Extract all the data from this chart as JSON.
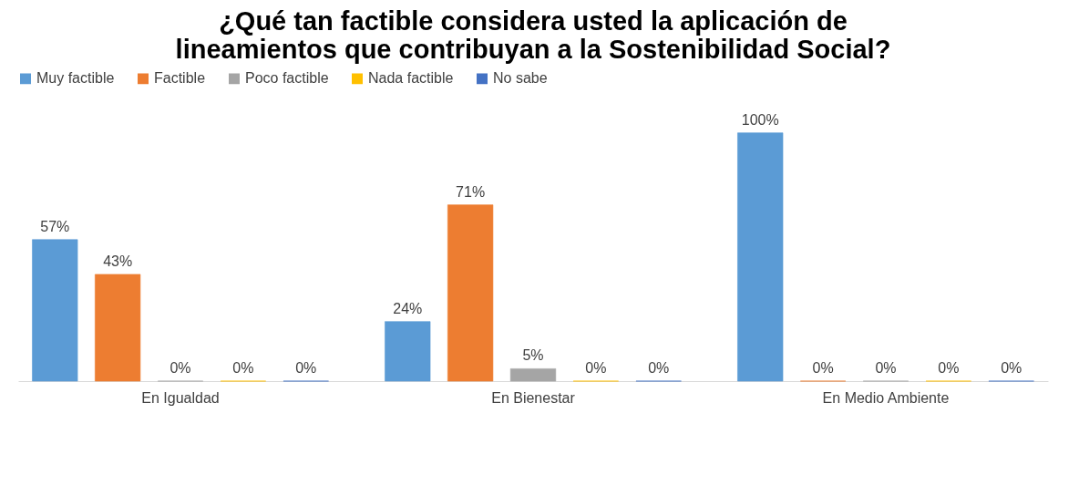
{
  "chart_data": {
    "type": "bar",
    "title": "¿Qué tan factible considera usted la aplicación de lineamientos que contribuyan a la Sostenibilidad Social?",
    "categories": [
      "En Igualdad",
      "En Bienestar",
      "En Medio Ambiente"
    ],
    "legend": "top",
    "series": [
      {
        "name": "Muy factible",
        "color": "#5b9bd5",
        "values": [
          57,
          24,
          100
        ],
        "value_labels": [
          "57%",
          "24%",
          "100%"
        ]
      },
      {
        "name": "Factible",
        "color": "#ed7d31",
        "values": [
          43,
          71,
          0
        ],
        "value_labels": [
          "43%",
          "71%",
          "0%"
        ]
      },
      {
        "name": "Poco factible",
        "color": "#a5a5a5",
        "values": [
          0,
          5,
          0
        ],
        "value_labels": [
          "0%",
          "5%",
          "0%"
        ]
      },
      {
        "name": "Nada factible",
        "color": "#ffc000",
        "values": [
          0,
          0,
          0
        ],
        "value_labels": [
          "0%",
          "0%",
          "0%"
        ]
      },
      {
        "name": "No sabe",
        "color": "#4472c4",
        "values": [
          0,
          0,
          0
        ],
        "value_labels": [
          "0%",
          "0%",
          "0%"
        ]
      }
    ]
  }
}
